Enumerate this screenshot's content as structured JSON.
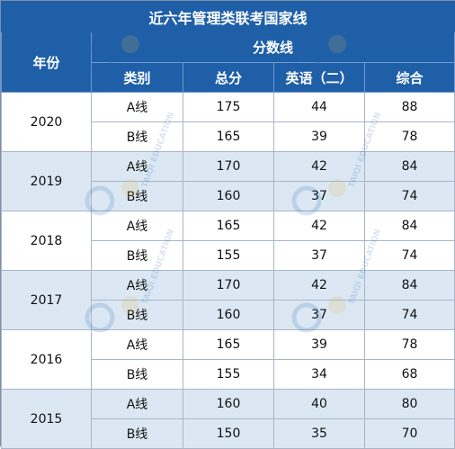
{
  "table": {
    "title": "近六年管理类联考国家线",
    "year_header": "年份",
    "score_group_header": "分数线",
    "columns": [
      "类别",
      "总分",
      "英语（二）",
      "综合"
    ],
    "groups": [
      {
        "year": "2020",
        "shade": "white",
        "rows": [
          {
            "category": "A线",
            "total": "175",
            "english": "44",
            "comprehensive": "88"
          },
          {
            "category": "B线",
            "total": "165",
            "english": "39",
            "comprehensive": "78"
          }
        ]
      },
      {
        "year": "2019",
        "shade": "blue",
        "rows": [
          {
            "category": "A线",
            "total": "170",
            "english": "42",
            "comprehensive": "84"
          },
          {
            "category": "B线",
            "total": "160",
            "english": "37",
            "comprehensive": "74"
          }
        ]
      },
      {
        "year": "2018",
        "shade": "white",
        "rows": [
          {
            "category": "A线",
            "total": "165",
            "english": "42",
            "comprehensive": "84"
          },
          {
            "category": "B线",
            "total": "155",
            "english": "37",
            "comprehensive": "74"
          }
        ]
      },
      {
        "year": "2017",
        "shade": "blue",
        "rows": [
          {
            "category": "A线",
            "total": "170",
            "english": "42",
            "comprehensive": "84"
          },
          {
            "category": "B线",
            "total": "160",
            "english": "37",
            "comprehensive": "74"
          }
        ]
      },
      {
        "year": "2016",
        "shade": "white",
        "rows": [
          {
            "category": "A线",
            "total": "165",
            "english": "39",
            "comprehensive": "78"
          },
          {
            "category": "B线",
            "total": "155",
            "english": "34",
            "comprehensive": "68"
          }
        ]
      },
      {
        "year": "2015",
        "shade": "blue",
        "rows": [
          {
            "category": "A线",
            "total": "160",
            "english": "40",
            "comprehensive": "80"
          },
          {
            "category": "B线",
            "total": "150",
            "english": "35",
            "comprehensive": "70"
          }
        ]
      }
    ]
  },
  "watermark": {
    "text": "TAIQI EDUCATION",
    "icon": "taiqi-logo-icon"
  },
  "colors": {
    "header_blue": "#1f5fa8",
    "row_blue": "#dbe8f4",
    "row_white": "#ffffff",
    "grid": "#a9b5c6"
  }
}
